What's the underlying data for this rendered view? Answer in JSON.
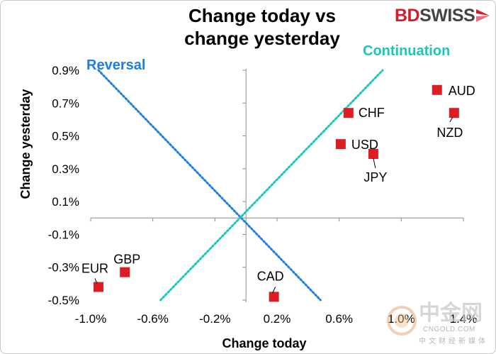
{
  "brand": {
    "bd": "BD",
    "swiss": "SWISS"
  },
  "watermark": {
    "chinese": "中金网",
    "url": "CNGOLD.COM",
    "subtitle": "中文财经新媒体"
  },
  "colors": {
    "marker": "#dd1c24",
    "reversal": "#1f7fe0",
    "continuation": "#19c8b8",
    "brand_red": "#d21d2a"
  },
  "chart_data": {
    "type": "scatter",
    "title_lines": [
      "Change today vs",
      "change yesterday"
    ],
    "xlabel": "Change today",
    "ylabel": "Change yesterday",
    "xlim": [
      -1.0,
      1.4
    ],
    "ylim": [
      -0.5,
      0.9
    ],
    "x_ticks": [
      "-1.0%",
      "-0.6%",
      "-0.2%",
      "0.2%",
      "0.6%",
      "1.0%",
      "1.4%"
    ],
    "x_tick_values": [
      -1.0,
      -0.6,
      -0.2,
      0.2,
      0.6,
      1.0,
      1.4
    ],
    "y_ticks": [
      "0.9%",
      "0.7%",
      "0.5%",
      "0.3%",
      "0.1%",
      "-0.1%",
      "-0.3%",
      "-0.5%"
    ],
    "y_tick_values": [
      0.9,
      0.7,
      0.5,
      0.3,
      0.1,
      -0.1,
      -0.3,
      -0.5
    ],
    "points": [
      {
        "label": "AUD",
        "x": 1.23,
        "y": 0.78
      },
      {
        "label": "NZD",
        "x": 1.34,
        "y": 0.64
      },
      {
        "label": "CHF",
        "x": 0.66,
        "y": 0.64
      },
      {
        "label": "USD",
        "x": 0.61,
        "y": 0.45
      },
      {
        "label": "JPY",
        "x": 0.82,
        "y": 0.39
      },
      {
        "label": "GBP",
        "x": -0.78,
        "y": -0.33
      },
      {
        "label": "EUR",
        "x": -0.95,
        "y": -0.42
      },
      {
        "label": "CAD",
        "x": 0.18,
        "y": -0.48
      }
    ],
    "lines": [
      {
        "name": "Reversal",
        "from": [
          -0.95,
          0.9
        ],
        "to": [
          0.48,
          -0.5
        ]
      },
      {
        "name": "Continuation",
        "from": [
          -0.55,
          -0.5
        ],
        "to": [
          0.88,
          0.9
        ]
      }
    ]
  }
}
